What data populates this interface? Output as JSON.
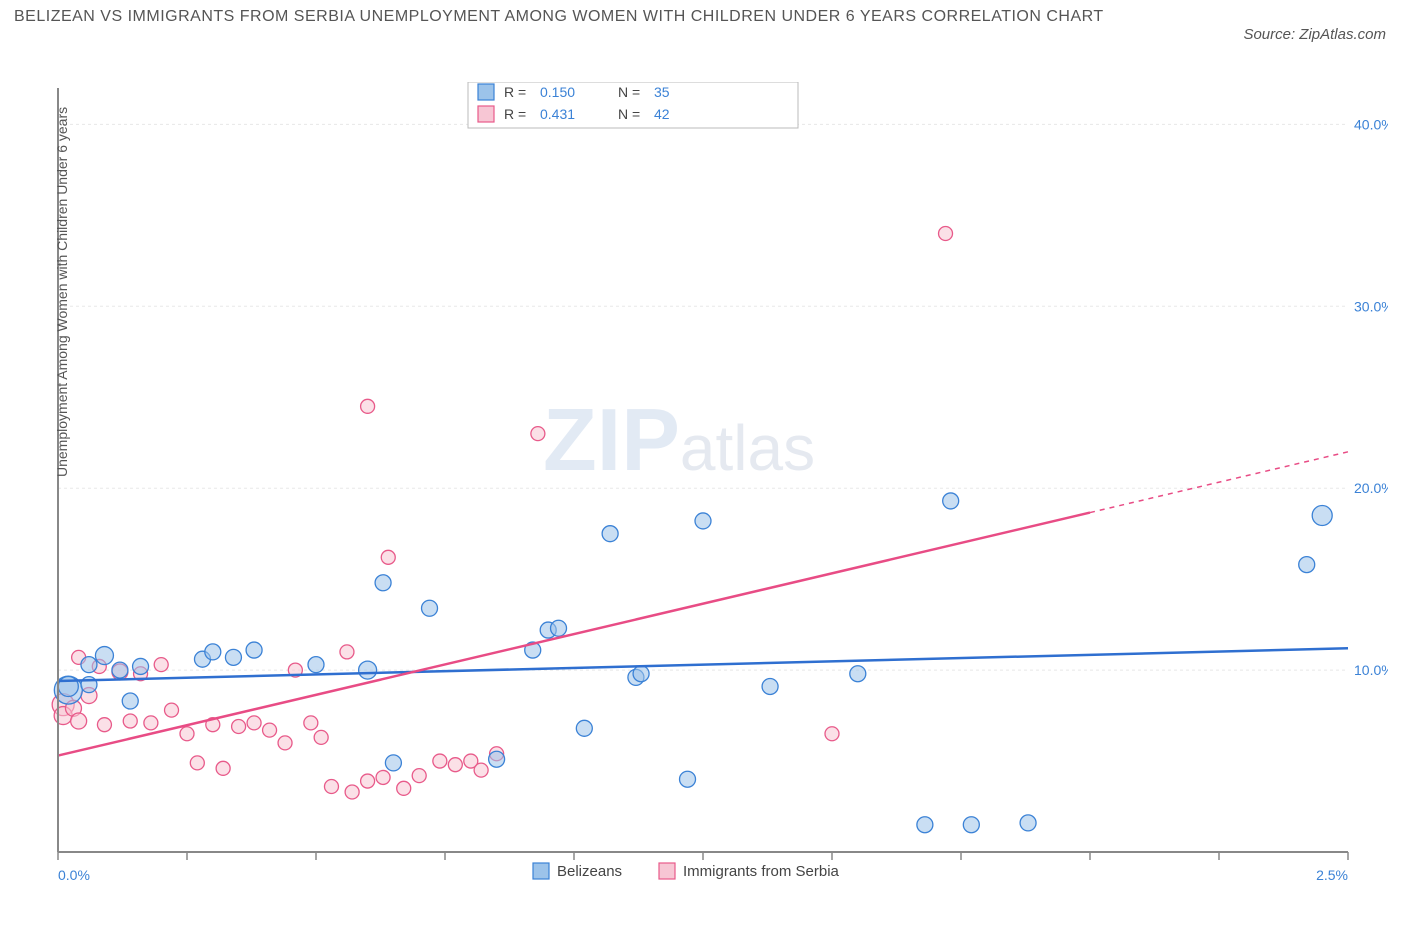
{
  "title": "BELIZEAN VS IMMIGRANTS FROM SERBIA UNEMPLOYMENT AMONG WOMEN WITH CHILDREN UNDER 6 YEARS CORRELATION CHART",
  "source": "Source: ZipAtlas.com",
  "y_axis_label": "Unemployment Among Women with Children Under 6 years",
  "watermark": {
    "part1": "ZIP",
    "part2": "atlas"
  },
  "chart": {
    "type": "scatter",
    "background_color": "#ffffff",
    "grid_color": "#e8e8e8",
    "axis_color": "#888888",
    "xlim": [
      0.0,
      2.5
    ],
    "ylim": [
      0.0,
      42.0
    ],
    "x_ticks_minor": [
      0.0,
      0.25,
      0.5,
      0.75,
      1.0,
      1.25,
      1.5,
      1.75,
      2.0,
      2.25,
      2.5
    ],
    "x_tick_labels": [
      {
        "x": 0.0,
        "label": "0.0%"
      },
      {
        "x": 2.5,
        "label": "2.5%"
      }
    ],
    "y_grid": [
      10.0,
      20.0,
      30.0,
      40.0
    ],
    "y_tick_labels": [
      {
        "y": 10.0,
        "label": "10.0%"
      },
      {
        "y": 20.0,
        "label": "20.0%"
      },
      {
        "y": 30.0,
        "label": "30.0%"
      },
      {
        "y": 40.0,
        "label": "40.0%"
      }
    ],
    "series": [
      {
        "name": "Belizeans",
        "marker_color_fill": "#9cc3ea",
        "marker_color_stroke": "#3b82d6",
        "marker_fill_opacity": 0.55,
        "trend_color": "#2f6fd0",
        "trend_width": 2.5,
        "R": "0.150",
        "N": "35",
        "trend": {
          "x1": 0.0,
          "y1": 9.4,
          "x2": 2.5,
          "y2": 11.2,
          "x_solid_max": 2.5
        },
        "points": [
          {
            "x": 0.02,
            "y": 8.9,
            "r": 14
          },
          {
            "x": 0.02,
            "y": 9.1,
            "r": 10
          },
          {
            "x": 0.06,
            "y": 10.3,
            "r": 8
          },
          {
            "x": 0.06,
            "y": 9.2,
            "r": 8
          },
          {
            "x": 0.09,
            "y": 10.8,
            "r": 9
          },
          {
            "x": 0.12,
            "y": 10.0,
            "r": 8
          },
          {
            "x": 0.14,
            "y": 8.3,
            "r": 8
          },
          {
            "x": 0.16,
            "y": 10.2,
            "r": 8
          },
          {
            "x": 0.28,
            "y": 10.6,
            "r": 8
          },
          {
            "x": 0.3,
            "y": 11.0,
            "r": 8
          },
          {
            "x": 0.34,
            "y": 10.7,
            "r": 8
          },
          {
            "x": 0.38,
            "y": 11.1,
            "r": 8
          },
          {
            "x": 0.5,
            "y": 10.3,
            "r": 8
          },
          {
            "x": 0.6,
            "y": 10.0,
            "r": 9
          },
          {
            "x": 0.63,
            "y": 14.8,
            "r": 8
          },
          {
            "x": 0.65,
            "y": 4.9,
            "r": 8
          },
          {
            "x": 0.72,
            "y": 13.4,
            "r": 8
          },
          {
            "x": 0.85,
            "y": 5.1,
            "r": 8
          },
          {
            "x": 0.92,
            "y": 11.1,
            "r": 8
          },
          {
            "x": 0.95,
            "y": 12.2,
            "r": 8
          },
          {
            "x": 0.97,
            "y": 12.3,
            "r": 8
          },
          {
            "x": 1.02,
            "y": 6.8,
            "r": 8
          },
          {
            "x": 1.07,
            "y": 17.5,
            "r": 8
          },
          {
            "x": 1.12,
            "y": 9.6,
            "r": 8
          },
          {
            "x": 1.13,
            "y": 9.8,
            "r": 8
          },
          {
            "x": 1.22,
            "y": 4.0,
            "r": 8
          },
          {
            "x": 1.25,
            "y": 18.2,
            "r": 8
          },
          {
            "x": 1.38,
            "y": 9.1,
            "r": 8
          },
          {
            "x": 1.55,
            "y": 9.8,
            "r": 8
          },
          {
            "x": 1.68,
            "y": 1.5,
            "r": 8
          },
          {
            "x": 1.73,
            "y": 19.3,
            "r": 8
          },
          {
            "x": 1.77,
            "y": 1.5,
            "r": 8
          },
          {
            "x": 1.88,
            "y": 1.6,
            "r": 8
          },
          {
            "x": 2.42,
            "y": 15.8,
            "r": 8
          },
          {
            "x": 2.45,
            "y": 18.5,
            "r": 10
          }
        ]
      },
      {
        "name": "Immigrants from Serbia",
        "marker_color_fill": "#f7c6d4",
        "marker_color_stroke": "#e85a8a",
        "marker_fill_opacity": 0.55,
        "trend_color": "#e84c85",
        "trend_width": 2.5,
        "R": "0.431",
        "N": "42",
        "trend": {
          "x1": 0.0,
          "y1": 5.3,
          "x2": 2.5,
          "y2": 22.0,
          "x_solid_max": 2.0
        },
        "points": [
          {
            "x": 0.01,
            "y": 8.1,
            "r": 11
          },
          {
            "x": 0.01,
            "y": 7.5,
            "r": 9
          },
          {
            "x": 0.03,
            "y": 7.9,
            "r": 8
          },
          {
            "x": 0.04,
            "y": 7.2,
            "r": 8
          },
          {
            "x": 0.04,
            "y": 10.7,
            "r": 7
          },
          {
            "x": 0.06,
            "y": 8.6,
            "r": 8
          },
          {
            "x": 0.08,
            "y": 10.2,
            "r": 7
          },
          {
            "x": 0.09,
            "y": 7.0,
            "r": 7
          },
          {
            "x": 0.12,
            "y": 9.9,
            "r": 8
          },
          {
            "x": 0.14,
            "y": 7.2,
            "r": 7
          },
          {
            "x": 0.16,
            "y": 9.8,
            "r": 7
          },
          {
            "x": 0.18,
            "y": 7.1,
            "r": 7
          },
          {
            "x": 0.2,
            "y": 10.3,
            "r": 7
          },
          {
            "x": 0.22,
            "y": 7.8,
            "r": 7
          },
          {
            "x": 0.25,
            "y": 6.5,
            "r": 7
          },
          {
            "x": 0.27,
            "y": 4.9,
            "r": 7
          },
          {
            "x": 0.3,
            "y": 7.0,
            "r": 7
          },
          {
            "x": 0.32,
            "y": 4.6,
            "r": 7
          },
          {
            "x": 0.35,
            "y": 6.9,
            "r": 7
          },
          {
            "x": 0.38,
            "y": 7.1,
            "r": 7
          },
          {
            "x": 0.41,
            "y": 6.7,
            "r": 7
          },
          {
            "x": 0.44,
            "y": 6.0,
            "r": 7
          },
          {
            "x": 0.46,
            "y": 10.0,
            "r": 7
          },
          {
            "x": 0.49,
            "y": 7.1,
            "r": 7
          },
          {
            "x": 0.51,
            "y": 6.3,
            "r": 7
          },
          {
            "x": 0.53,
            "y": 3.6,
            "r": 7
          },
          {
            "x": 0.56,
            "y": 11.0,
            "r": 7
          },
          {
            "x": 0.57,
            "y": 3.3,
            "r": 7
          },
          {
            "x": 0.6,
            "y": 3.9,
            "r": 7
          },
          {
            "x": 0.6,
            "y": 24.5,
            "r": 7
          },
          {
            "x": 0.63,
            "y": 4.1,
            "r": 7
          },
          {
            "x": 0.64,
            "y": 16.2,
            "r": 7
          },
          {
            "x": 0.67,
            "y": 3.5,
            "r": 7
          },
          {
            "x": 0.7,
            "y": 4.2,
            "r": 7
          },
          {
            "x": 0.74,
            "y": 5.0,
            "r": 7
          },
          {
            "x": 0.77,
            "y": 4.8,
            "r": 7
          },
          {
            "x": 0.8,
            "y": 5.0,
            "r": 7
          },
          {
            "x": 0.82,
            "y": 4.5,
            "r": 7
          },
          {
            "x": 0.85,
            "y": 5.4,
            "r": 7
          },
          {
            "x": 0.93,
            "y": 23.0,
            "r": 7
          },
          {
            "x": 1.5,
            "y": 6.5,
            "r": 7
          },
          {
            "x": 1.72,
            "y": 34.0,
            "r": 7
          }
        ]
      }
    ],
    "legend_bottom": [
      {
        "series": 0,
        "label": "Belizeans"
      },
      {
        "series": 1,
        "label": "Immigrants from Serbia"
      }
    ]
  }
}
